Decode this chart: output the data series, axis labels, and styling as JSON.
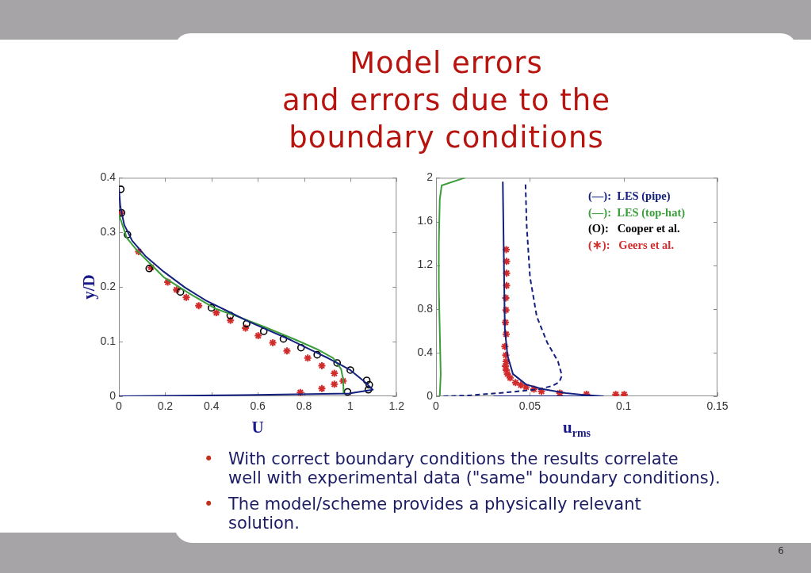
{
  "chart_data": [
    {
      "type": "line",
      "title": "Model errors\nand errors due to the\nboundary conditions",
      "xlabel": "U",
      "ylabel": "y/D",
      "xlim": [
        0,
        1.2
      ],
      "xticks": [
        0,
        0.2,
        0.4,
        0.6,
        0.8,
        1,
        1.2
      ],
      "ylim": [
        0,
        0.4
      ],
      "yticks": [
        0,
        0.1,
        0.2,
        0.3,
        0.4
      ],
      "legend": "right",
      "series": [
        {
          "name": "(—):  LES (pipe)",
          "color": "#14207e",
          "x": [
            0,
            0.006,
            0.023,
            0.057,
            0.114,
            0.194,
            0.286,
            0.377,
            0.469,
            0.56,
            0.651,
            0.743,
            0.834,
            0.903,
            0.943,
            1.0,
            1.063,
            1.097,
            0.994,
            0.537,
            0
          ],
          "values": [
            0.381,
            0.348,
            0.314,
            0.285,
            0.257,
            0.228,
            0.199,
            0.175,
            0.156,
            0.137,
            0.12,
            0.103,
            0.084,
            0.07,
            0.061,
            0.048,
            0.026,
            0.012,
            0.005,
            0.002,
            0
          ]
        },
        {
          "name": "(—):  LES (top-hat)",
          "color": "#3a9e3a",
          "x": [
            0,
            0.034,
            0.08,
            0.194,
            0.309,
            0.42,
            0.52,
            0.629,
            0.766,
            0.857,
            0.926,
            0.96,
            0.969,
            0.971
          ],
          "values": [
            0.333,
            0.29,
            0.266,
            0.218,
            0.187,
            0.16,
            0.145,
            0.127,
            0.103,
            0.086,
            0.07,
            0.05,
            0.031,
            0.007
          ]
        },
        {
          "name": "(O):   Cooper et al.",
          "color": "#000000",
          "type": "scatter",
          "marker": "circle",
          "x": [
            0.008,
            0.011,
            0.037,
            0.131,
            0.266,
            0.4,
            0.481,
            0.552,
            0.626,
            0.711,
            0.787,
            0.857,
            0.943,
            1.0,
            1.071,
            1.082,
            1.078,
            0.988
          ],
          "values": [
            0.379,
            0.336,
            0.296,
            0.234,
            0.191,
            0.162,
            0.148,
            0.133,
            0.119,
            0.105,
            0.089,
            0.076,
            0.061,
            0.048,
            0.029,
            0.021,
            0.012,
            0.008
          ]
        },
        {
          "name": "(∗):   Geers et al.",
          "color": "#d22b2b",
          "type": "scatter",
          "marker": "cross",
          "x": [
            0.008,
            0.085,
            0.139,
            0.211,
            0.249,
            0.291,
            0.345,
            0.421,
            0.482,
            0.547,
            0.602,
            0.665,
            0.726,
            0.816,
            0.877,
            0.931,
            0.969,
            0.931,
            0.877,
            0.784
          ],
          "values": [
            0.335,
            0.265,
            0.236,
            0.209,
            0.195,
            0.181,
            0.166,
            0.153,
            0.139,
            0.125,
            0.111,
            0.098,
            0.083,
            0.07,
            0.056,
            0.042,
            0.028,
            0.022,
            0.014,
            0.007
          ]
        }
      ],
      "annotations": [
        "• With correct boundary conditions the results correlate\nwell with experimental data (\"same\" boundary conditions).",
        "• The model/scheme provides a physically relevant\nsolution."
      ]
    },
    {
      "type": "line",
      "xlabel": "u$_{rms}$",
      "xlim": [
        0,
        0.15
      ],
      "xticks": [
        0,
        0.05,
        0.1,
        0.15
      ],
      "ylim": [
        0,
        2
      ],
      "yticks": [
        0,
        0.4,
        0.8,
        1.2,
        1.6,
        2
      ],
      "series": [
        {
          "color": "#3a9e3a",
          "x": [
            0.002,
            0.0025,
            0.002,
            0.0015,
            0.0015,
            0.002,
            0.003,
            0.0153
          ],
          "values": [
            0,
            0.2,
            0.6,
            1.0,
            1.4,
            1.8,
            1.93,
            2.0
          ]
        },
        {
          "color": "#14207e",
          "line_style": "dashed",
          "x": [
            0.0477,
            0.0483,
            0.0501,
            0.0537,
            0.0593,
            0.065,
            0.0671,
            0.0657,
            0.0621,
            0.0551,
            0.0381,
            0.017,
            0.0028
          ],
          "values": [
            1.94,
            1.57,
            1.09,
            0.73,
            0.49,
            0.32,
            0.19,
            0.13,
            0.096,
            0.065,
            0.036,
            0.007,
            0
          ]
        },
        {
          "color": "#14207e",
          "x": [
            0.0356,
            0.0362,
            0.0367,
            0.0381,
            0.041,
            0.048,
            0.0565,
            0.0692,
            0.0805,
            0.089,
            0.031
          ],
          "values": [
            1.96,
            1.2,
            0.61,
            0.372,
            0.204,
            0.108,
            0.067,
            0.029,
            0.01,
            0,
            0
          ]
        },
        {
          "color": "#d22b2b",
          "type": "scatter",
          "marker": "cross",
          "x": [
            0.0374,
            0.0376,
            0.0376,
            0.0376,
            0.0372,
            0.0373,
            0.037,
            0.0374,
            0.0367,
            0.0372,
            0.0374,
            0.037,
            0.0374,
            0.0381,
            0.0395,
            0.0424,
            0.0452,
            0.048,
            0.0522,
            0.0562,
            0.066,
            0.0802,
            0.0958,
            0.1003
          ],
          "values": [
            1.343,
            1.235,
            1.127,
            1.014,
            0.9,
            0.79,
            0.676,
            0.568,
            0.456,
            0.376,
            0.319,
            0.276,
            0.24,
            0.204,
            0.168,
            0.125,
            0.103,
            0.084,
            0.065,
            0.045,
            0.029,
            0.019,
            0.017,
            0.017
          ]
        }
      ],
      "annotations": [
        "6"
      ]
    }
  ]
}
